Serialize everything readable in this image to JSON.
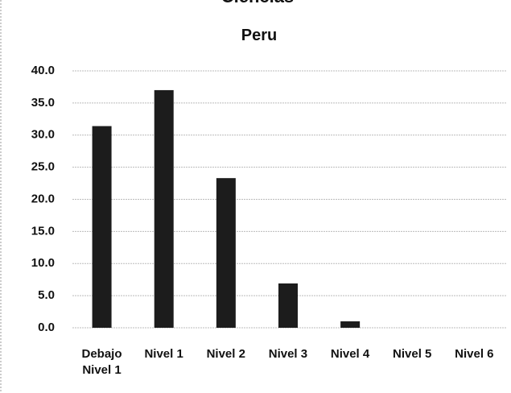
{
  "chart_data": {
    "type": "bar",
    "title": "Ciencias",
    "subtitle": "Peru",
    "categories": [
      "Debajo Nivel 1",
      "Nivel 1",
      "Nivel 2",
      "Nivel 3",
      "Nivel 4",
      "Nivel 5",
      "Nivel 6"
    ],
    "values": [
      31.4,
      37.0,
      23.3,
      6.9,
      1.0,
      0.0,
      0.0
    ],
    "color": "#1c1c1c",
    "ylim": [
      0,
      40
    ],
    "yticks": [
      {
        "value": 0,
        "label": "0.0"
      },
      {
        "value": 5,
        "label": "5.0"
      },
      {
        "value": 10,
        "label": "10.0"
      },
      {
        "value": 15,
        "label": "15.0"
      },
      {
        "value": 20,
        "label": "20.0"
      },
      {
        "value": 25,
        "label": "25.0"
      },
      {
        "value": 30,
        "label": "30.0"
      },
      {
        "value": 35,
        "label": "35.0"
      },
      {
        "value": 40,
        "label": "40.0"
      }
    ],
    "grid": true
  }
}
